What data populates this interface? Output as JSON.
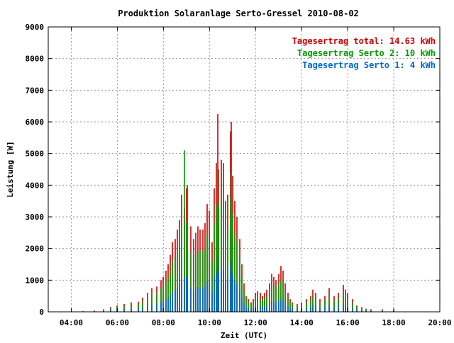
{
  "chart_data": {
    "type": "bar",
    "title": "Produktion Solaranlage Serto-Gressel 2010-08-02",
    "xlabel": "Zeit (UTC)",
    "ylabel": "Leistung [W]",
    "ylim": [
      0,
      9000
    ],
    "xlim": [
      3.0,
      20.0
    ],
    "grid": true,
    "legend_position": "top-right",
    "x_ticks": [
      "04:00",
      "06:00",
      "08:00",
      "10:00",
      "12:00",
      "14:00",
      "16:00",
      "18:00",
      "20:00"
    ],
    "y_ticks": [
      "0",
      "1000",
      "2000",
      "3000",
      "4000",
      "5000",
      "6000",
      "7000",
      "8000",
      "9000"
    ],
    "legend": [
      {
        "label": "Tagesertrag total: 14.63 kWh",
        "color": "#cc0000"
      },
      {
        "label": "Tagesertrag Serto 2: 10 kWh",
        "color": "#009900"
      },
      {
        "label": "Tagesertrag Serto 1: 4 kWh",
        "color": "#0066cc"
      }
    ],
    "series": [
      {
        "name": "Tagesertrag total: 14.63 kWh",
        "color": "#cc0000",
        "points": [
          [
            4.5,
            20
          ],
          [
            5.0,
            40
          ],
          [
            5.4,
            80
          ],
          [
            5.7,
            150
          ],
          [
            6.0,
            200
          ],
          [
            6.3,
            250
          ],
          [
            6.6,
            300
          ],
          [
            6.9,
            320
          ],
          [
            7.1,
            450
          ],
          [
            7.3,
            600
          ],
          [
            7.5,
            750
          ],
          [
            7.7,
            800
          ],
          [
            7.9,
            1000
          ],
          [
            8.0,
            1100
          ],
          [
            8.1,
            1300
          ],
          [
            8.2,
            1500
          ],
          [
            8.3,
            1800
          ],
          [
            8.4,
            2200
          ],
          [
            8.5,
            2300
          ],
          [
            8.6,
            2600
          ],
          [
            8.7,
            2900
          ],
          [
            8.8,
            3700
          ],
          [
            8.9,
            3300
          ],
          [
            9.0,
            3900
          ],
          [
            9.05,
            4000
          ],
          [
            9.2,
            2700
          ],
          [
            9.3,
            2300
          ],
          [
            9.4,
            2500
          ],
          [
            9.5,
            2700
          ],
          [
            9.6,
            2600
          ],
          [
            9.7,
            2600
          ],
          [
            9.8,
            2800
          ],
          [
            9.9,
            3400
          ],
          [
            10.0,
            3200
          ],
          [
            10.1,
            2200
          ],
          [
            10.2,
            3900
          ],
          [
            10.3,
            4700
          ],
          [
            10.35,
            6250
          ],
          [
            10.4,
            4500
          ],
          [
            10.5,
            4800
          ],
          [
            10.6,
            4700
          ],
          [
            10.7,
            3500
          ],
          [
            10.8,
            3700
          ],
          [
            10.9,
            5700
          ],
          [
            10.95,
            6000
          ],
          [
            11.0,
            4300
          ],
          [
            11.1,
            3500
          ],
          [
            11.2,
            3000
          ],
          [
            11.3,
            2300
          ],
          [
            11.4,
            1500
          ],
          [
            11.5,
            900
          ],
          [
            11.6,
            500
          ],
          [
            11.7,
            400
          ],
          [
            11.8,
            300
          ],
          [
            11.9,
            400
          ],
          [
            12.0,
            600
          ],
          [
            12.1,
            650
          ],
          [
            12.2,
            600
          ],
          [
            12.3,
            500
          ],
          [
            12.4,
            600
          ],
          [
            12.5,
            700
          ],
          [
            12.6,
            900
          ],
          [
            12.7,
            1200
          ],
          [
            12.8,
            1100
          ],
          [
            12.9,
            1000
          ],
          [
            13.0,
            1200
          ],
          [
            13.1,
            1450
          ],
          [
            13.2,
            1300
          ],
          [
            13.3,
            900
          ],
          [
            13.4,
            600
          ],
          [
            13.5,
            400
          ],
          [
            13.6,
            300
          ],
          [
            13.8,
            250
          ],
          [
            14.0,
            300
          ],
          [
            14.2,
            400
          ],
          [
            14.4,
            500
          ],
          [
            14.5,
            700
          ],
          [
            14.6,
            600
          ],
          [
            14.8,
            400
          ],
          [
            15.0,
            500
          ],
          [
            15.2,
            750
          ],
          [
            15.4,
            500
          ],
          [
            15.6,
            600
          ],
          [
            15.8,
            850
          ],
          [
            15.9,
            700
          ],
          [
            16.0,
            600
          ],
          [
            16.2,
            400
          ],
          [
            16.4,
            200
          ],
          [
            16.6,
            150
          ],
          [
            16.8,
            100
          ],
          [
            17.0,
            80
          ],
          [
            17.5,
            80
          ],
          [
            18.0,
            60
          ]
        ]
      },
      {
        "name": "Tagesertrag Serto 2: 10 kWh",
        "color": "#009900",
        "points": [
          [
            4.5,
            15
          ],
          [
            5.0,
            30
          ],
          [
            5.4,
            60
          ],
          [
            5.7,
            110
          ],
          [
            6.0,
            150
          ],
          [
            6.3,
            180
          ],
          [
            6.6,
            220
          ],
          [
            6.9,
            240
          ],
          [
            7.1,
            330
          ],
          [
            7.3,
            430
          ],
          [
            7.5,
            550
          ],
          [
            7.7,
            580
          ],
          [
            7.9,
            720
          ],
          [
            8.0,
            800
          ],
          [
            8.1,
            950
          ],
          [
            8.2,
            1100
          ],
          [
            8.3,
            1300
          ],
          [
            8.4,
            1600
          ],
          [
            8.5,
            1700
          ],
          [
            8.6,
            1900
          ],
          [
            8.7,
            2100
          ],
          [
            8.8,
            2700
          ],
          [
            8.9,
            5100
          ],
          [
            9.0,
            2800
          ],
          [
            9.05,
            2900
          ],
          [
            9.2,
            1900
          ],
          [
            9.3,
            1700
          ],
          [
            9.4,
            1800
          ],
          [
            9.5,
            1950
          ],
          [
            9.6,
            1900
          ],
          [
            9.7,
            1900
          ],
          [
            9.8,
            2000
          ],
          [
            9.9,
            2500
          ],
          [
            10.0,
            2300
          ],
          [
            10.1,
            1600
          ],
          [
            10.2,
            2800
          ],
          [
            10.3,
            3400
          ],
          [
            10.35,
            4500
          ],
          [
            10.4,
            3300
          ],
          [
            10.5,
            3500
          ],
          [
            10.6,
            3400
          ],
          [
            10.7,
            2500
          ],
          [
            10.8,
            2700
          ],
          [
            10.9,
            3600
          ],
          [
            10.95,
            4400
          ],
          [
            11.0,
            3100
          ],
          [
            11.1,
            2500
          ],
          [
            11.2,
            2200
          ],
          [
            11.3,
            1700
          ],
          [
            11.4,
            1100
          ],
          [
            11.5,
            650
          ],
          [
            11.6,
            360
          ],
          [
            11.7,
            290
          ],
          [
            11.8,
            220
          ],
          [
            11.9,
            290
          ],
          [
            12.0,
            430
          ],
          [
            12.1,
            470
          ],
          [
            12.2,
            430
          ],
          [
            12.3,
            360
          ],
          [
            12.4,
            430
          ],
          [
            12.5,
            500
          ],
          [
            12.6,
            650
          ],
          [
            12.7,
            870
          ],
          [
            12.8,
            800
          ],
          [
            12.9,
            720
          ],
          [
            13.0,
            870
          ],
          [
            13.1,
            1050
          ],
          [
            13.2,
            950
          ],
          [
            13.3,
            650
          ],
          [
            13.4,
            430
          ],
          [
            13.5,
            290
          ],
          [
            13.6,
            220
          ],
          [
            13.8,
            180
          ],
          [
            14.0,
            220
          ],
          [
            14.2,
            290
          ],
          [
            14.4,
            360
          ],
          [
            14.5,
            500
          ],
          [
            14.6,
            430
          ],
          [
            14.8,
            290
          ],
          [
            15.0,
            360
          ],
          [
            15.2,
            540
          ],
          [
            15.4,
            360
          ],
          [
            15.6,
            430
          ],
          [
            15.8,
            610
          ],
          [
            15.9,
            500
          ],
          [
            16.0,
            430
          ],
          [
            16.2,
            290
          ],
          [
            16.4,
            150
          ],
          [
            16.6,
            110
          ],
          [
            16.8,
            70
          ],
          [
            17.0,
            60
          ],
          [
            17.5,
            60
          ],
          [
            18.0,
            45
          ]
        ]
      },
      {
        "name": "Tagesertrag Serto 1: 4 kWh",
        "color": "#0066cc",
        "points": [
          [
            4.5,
            5
          ],
          [
            5.0,
            12
          ],
          [
            5.4,
            25
          ],
          [
            5.7,
            45
          ],
          [
            6.0,
            60
          ],
          [
            6.3,
            75
          ],
          [
            6.6,
            90
          ],
          [
            6.9,
            95
          ],
          [
            7.1,
            130
          ],
          [
            7.3,
            175
          ],
          [
            7.5,
            220
          ],
          [
            7.7,
            235
          ],
          [
            7.9,
            290
          ],
          [
            8.0,
            320
          ],
          [
            8.1,
            380
          ],
          [
            8.2,
            440
          ],
          [
            8.3,
            520
          ],
          [
            8.4,
            640
          ],
          [
            8.5,
            680
          ],
          [
            8.6,
            760
          ],
          [
            8.7,
            850
          ],
          [
            8.8,
            1050
          ],
          [
            8.9,
            1100
          ],
          [
            9.0,
            1100
          ],
          [
            9.05,
            1150
          ],
          [
            9.2,
            780
          ],
          [
            9.3,
            670
          ],
          [
            9.4,
            720
          ],
          [
            9.5,
            780
          ],
          [
            9.6,
            760
          ],
          [
            9.7,
            760
          ],
          [
            9.8,
            800
          ],
          [
            9.9,
            980
          ],
          [
            10.0,
            920
          ],
          [
            10.1,
            640
          ],
          [
            10.2,
            1100
          ],
          [
            10.3,
            1300
          ],
          [
            10.35,
            1700
          ],
          [
            10.4,
            1250
          ],
          [
            10.5,
            1350
          ],
          [
            10.6,
            1300
          ],
          [
            10.7,
            1000
          ],
          [
            10.8,
            1050
          ],
          [
            10.9,
            1500
          ],
          [
            10.95,
            1600
          ],
          [
            11.0,
            1200
          ],
          [
            11.1,
            1000
          ],
          [
            11.2,
            860
          ],
          [
            11.3,
            660
          ],
          [
            11.4,
            430
          ],
          [
            11.5,
            260
          ],
          [
            11.6,
            145
          ],
          [
            11.7,
            115
          ],
          [
            11.8,
            87
          ],
          [
            11.9,
            115
          ],
          [
            12.0,
            175
          ],
          [
            12.1,
            190
          ],
          [
            12.2,
            175
          ],
          [
            12.3,
            145
          ],
          [
            12.4,
            175
          ],
          [
            12.5,
            200
          ],
          [
            12.6,
            260
          ],
          [
            12.7,
            350
          ],
          [
            12.8,
            320
          ],
          [
            12.9,
            290
          ],
          [
            13.0,
            350
          ],
          [
            13.1,
            420
          ],
          [
            13.2,
            380
          ],
          [
            13.3,
            260
          ],
          [
            13.4,
            175
          ],
          [
            13.5,
            115
          ],
          [
            13.6,
            87
          ],
          [
            13.8,
            72
          ],
          [
            14.0,
            87
          ],
          [
            14.2,
            115
          ],
          [
            14.4,
            145
          ],
          [
            14.5,
            200
          ],
          [
            14.6,
            175
          ],
          [
            14.8,
            115
          ],
          [
            15.0,
            145
          ],
          [
            15.2,
            215
          ],
          [
            15.4,
            145
          ],
          [
            15.6,
            175
          ],
          [
            15.8,
            245
          ],
          [
            15.9,
            200
          ],
          [
            16.0,
            175
          ],
          [
            16.2,
            115
          ],
          [
            16.4,
            58
          ],
          [
            16.6,
            43
          ],
          [
            16.8,
            29
          ],
          [
            17.0,
            23
          ],
          [
            17.5,
            23
          ],
          [
            18.0,
            17
          ]
        ]
      }
    ]
  }
}
